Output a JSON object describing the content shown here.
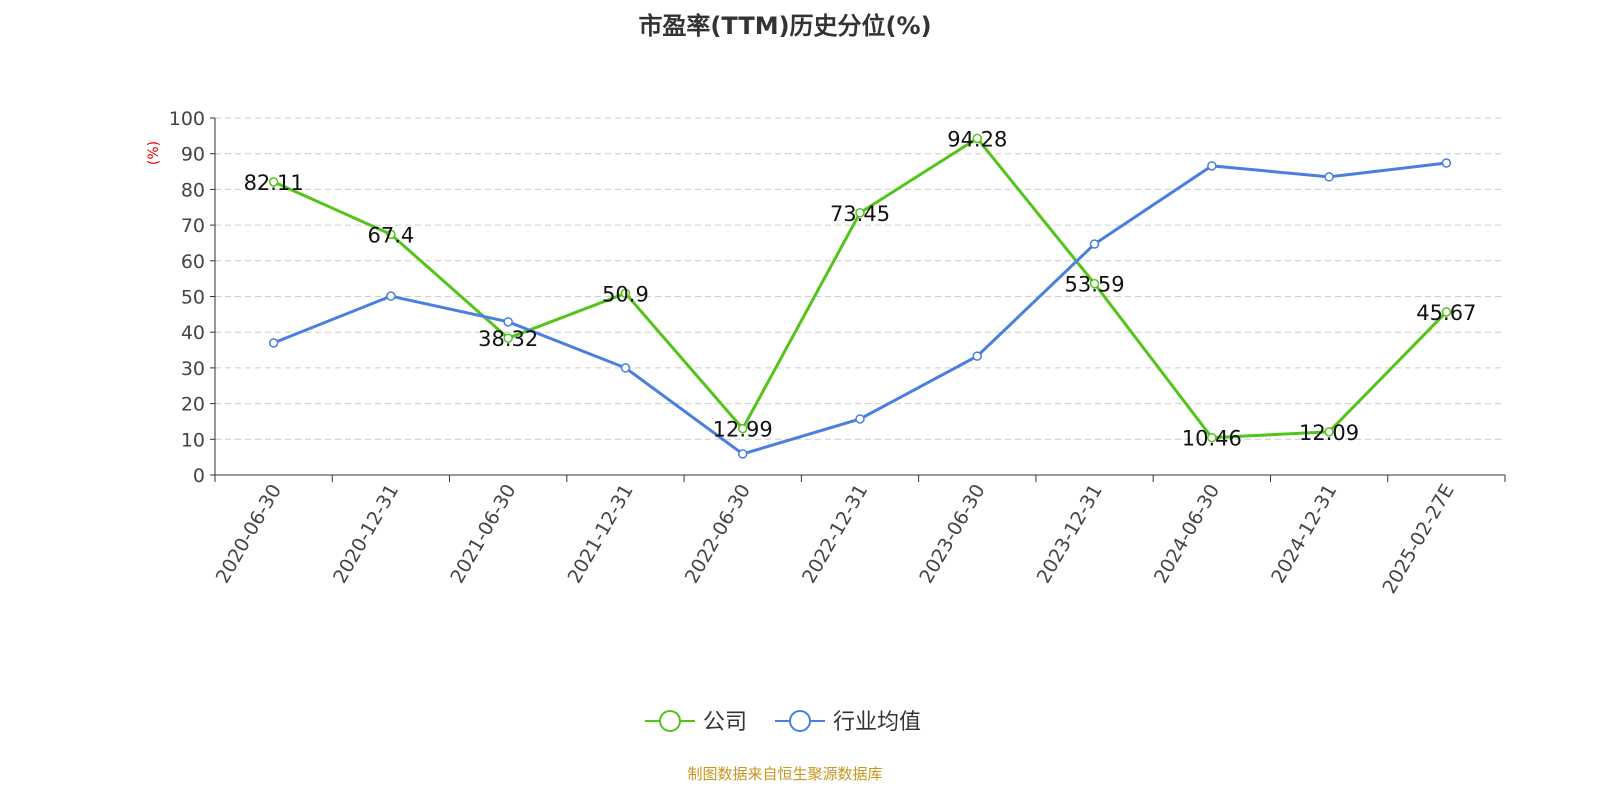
{
  "chart_data": {
    "type": "line",
    "title": "市盈率(TTM)历史分位(%)",
    "ylabel": "(%)",
    "ylim": [
      0,
      100
    ],
    "yticks": [
      0,
      10,
      20,
      30,
      40,
      50,
      60,
      70,
      80,
      90,
      100
    ],
    "grid": true,
    "legend_position": "bottom",
    "categories": [
      "2020-06-30",
      "2020-12-31",
      "2021-06-30",
      "2021-12-31",
      "2022-06-30",
      "2022-12-31",
      "2023-06-30",
      "2023-12-31",
      "2024-06-30",
      "2024-12-31",
      "2025-02-27E"
    ],
    "series": [
      {
        "name": "公司",
        "color": "#52c41a",
        "values": [
          82.11,
          67.4,
          38.32,
          50.9,
          12.99,
          73.45,
          94.28,
          53.59,
          10.46,
          12.09,
          45.67
        ],
        "data_labels": true
      },
      {
        "name": "行业均值",
        "color": "#4a7ee0",
        "values": [
          37.0,
          50.1,
          42.9,
          30.0,
          5.9,
          15.7,
          33.3,
          64.7,
          86.6,
          83.5,
          87.4
        ],
        "data_labels": false
      }
    ],
    "source": "制图数据来自恒生聚源数据库"
  }
}
